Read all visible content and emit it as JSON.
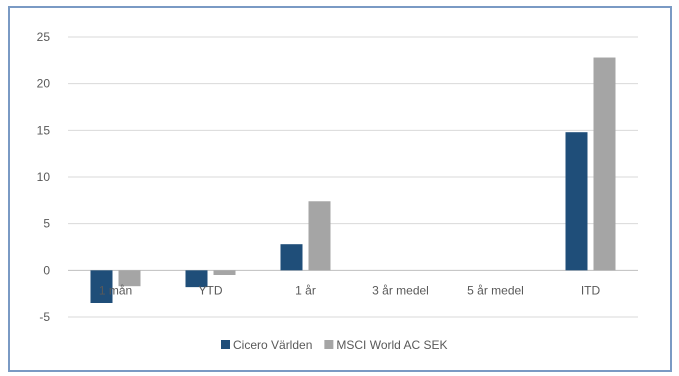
{
  "chart_data": {
    "type": "bar",
    "title": "",
    "xlabel": "",
    "ylabel": "",
    "categories": [
      "1 mån",
      "YTD",
      "1 år",
      "3 år medel",
      "5 år medel",
      "ITD"
    ],
    "series": [
      {
        "name": "Cicero Världen",
        "values": [
          -3.5,
          -1.8,
          2.8,
          null,
          null,
          14.8
        ],
        "color": "#1f4e79"
      },
      {
        "name": "MSCI World AC SEK",
        "values": [
          -1.7,
          -0.5,
          7.4,
          null,
          null,
          22.8
        ],
        "color": "#a5a5a5"
      }
    ],
    "ylim": [
      -5,
      25
    ],
    "yticks": [
      -5,
      0,
      5,
      10,
      15,
      20,
      25
    ],
    "grid": true,
    "legend": "bottom",
    "colors": {
      "gridline": "#d9d9d9",
      "axis": "#bfbfbf",
      "frame": "#7a9ac4"
    }
  }
}
